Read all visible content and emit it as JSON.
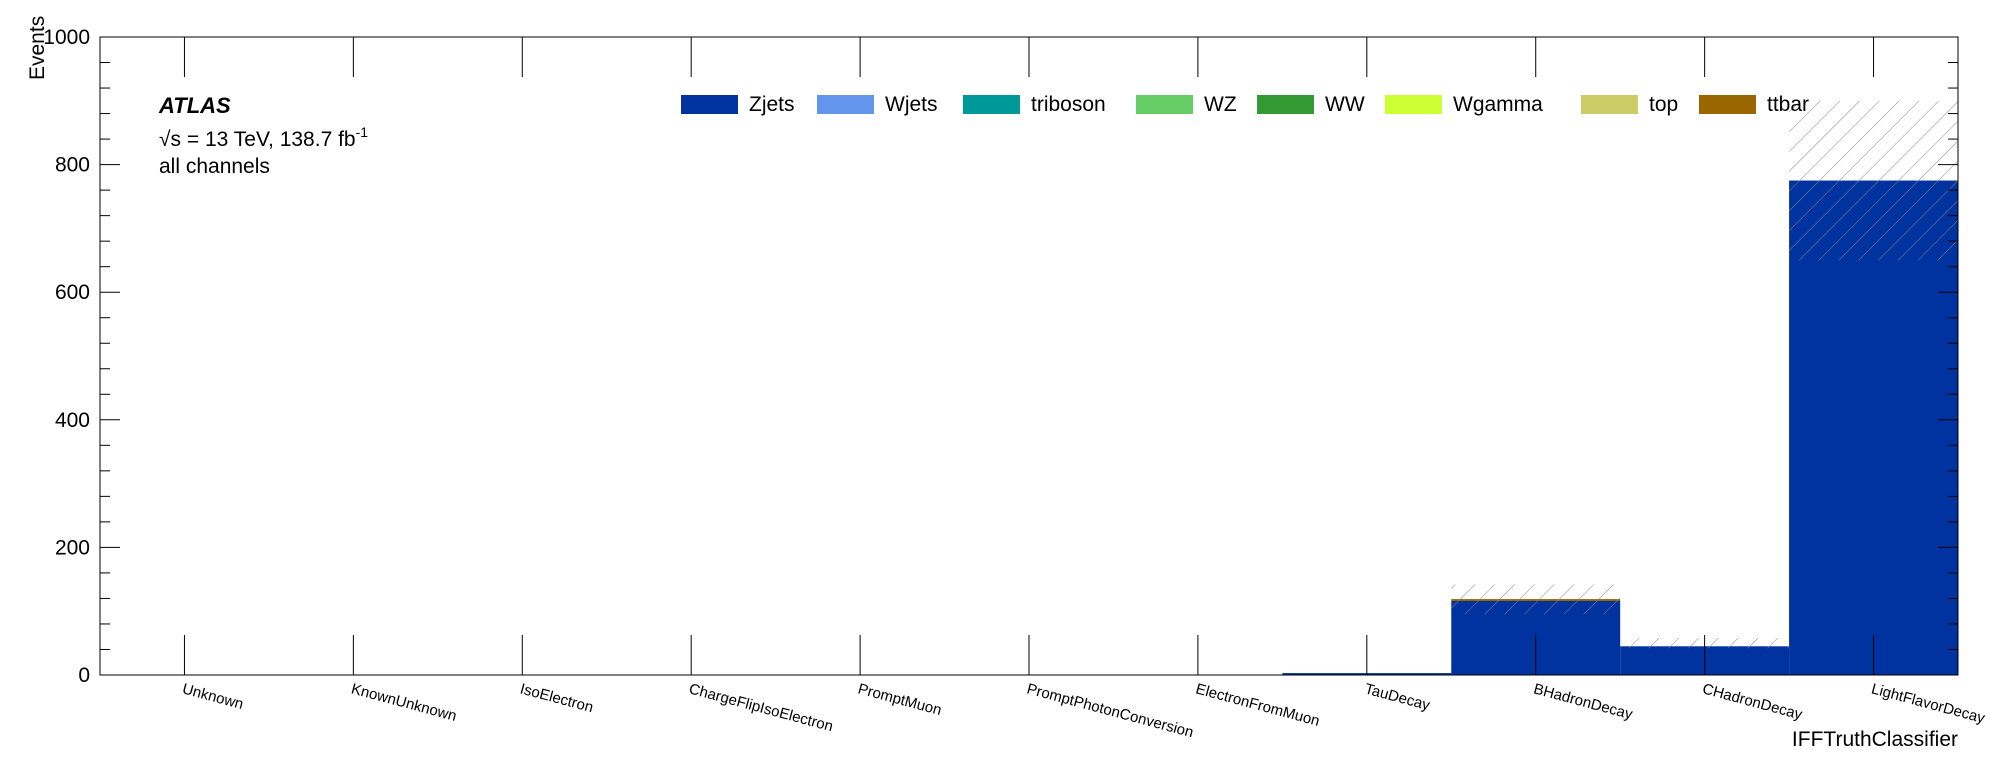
{
  "chart_data": {
    "type": "bar",
    "stacked": true,
    "xlabel": "IFFTruthClassifier",
    "ylabel": "Events",
    "ylim": [
      0,
      1000
    ],
    "yticks": [
      0,
      200,
      400,
      600,
      800,
      1000
    ],
    "categories": [
      "Unknown",
      "KnownUnknown",
      "IsoElectron",
      "ChargeFlipIsoElectron",
      "PromptMuon",
      "PromptPhotonConversion",
      "ElectronFromMuon",
      "TauDecay",
      "BHadronDecay",
      "CHadronDecay",
      "LightFlavorDecay"
    ],
    "series": [
      {
        "name": "Zjets",
        "color": "#0032a0",
        "values": [
          0,
          0,
          0,
          0,
          0,
          0,
          0,
          3,
          116,
          45,
          775
        ]
      },
      {
        "name": "Wjets",
        "color": "#6495ed",
        "values": [
          0,
          0,
          0,
          0,
          0,
          0,
          0,
          0,
          0,
          0,
          0
        ]
      },
      {
        "name": "triboson",
        "color": "#009999",
        "values": [
          0,
          0,
          0,
          0,
          0,
          0,
          0,
          0,
          0,
          0,
          0
        ]
      },
      {
        "name": "WZ",
        "color": "#66cc66",
        "values": [
          0,
          0,
          0,
          0,
          0,
          0,
          0,
          0,
          0,
          0,
          0
        ]
      },
      {
        "name": "WW",
        "color": "#339933",
        "values": [
          0,
          0,
          0,
          0,
          0,
          0,
          0,
          0,
          0,
          0,
          0
        ]
      },
      {
        "name": "Wgamma",
        "color": "#ccff33",
        "values": [
          0,
          0,
          0,
          0,
          0,
          0,
          0,
          0,
          0,
          0,
          0
        ]
      },
      {
        "name": "top",
        "color": "#cccc66",
        "values": [
          0,
          0,
          0,
          0,
          0,
          0,
          0,
          0,
          0,
          0,
          0
        ]
      },
      {
        "name": "ttbar",
        "color": "#996600",
        "values": [
          0,
          0,
          0,
          0,
          0,
          0,
          0,
          0,
          3,
          0,
          0
        ]
      }
    ],
    "uncertainty_band": {
      "lower": [
        0,
        0,
        0,
        0,
        0,
        0,
        0,
        0,
        95,
        42,
        650
      ],
      "upper": [
        0,
        0,
        0,
        0,
        0,
        0,
        0,
        0,
        142,
        58,
        900
      ]
    },
    "legend_placement": "top"
  },
  "atlas_label": {
    "experiment": "ATLAS",
    "energy": "√s = 13 TeV, 138.7 fb",
    "lumi_exponent": "-1",
    "region": "all channels"
  }
}
